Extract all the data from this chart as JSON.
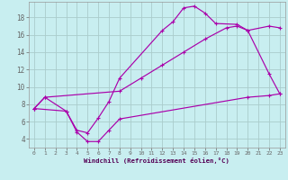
{
  "background_color": "#c8eef0",
  "grid_color": "#aacccc",
  "line_color": "#aa00aa",
  "xlabel": "Windchill (Refroidissement éolien,°C)",
  "xlim": [
    -0.5,
    23.5
  ],
  "ylim": [
    3.0,
    19.8
  ],
  "xticks": [
    0,
    1,
    2,
    3,
    4,
    5,
    6,
    7,
    8,
    9,
    10,
    11,
    12,
    13,
    14,
    15,
    16,
    17,
    18,
    19,
    20,
    21,
    22,
    23
  ],
  "yticks": [
    4,
    6,
    8,
    10,
    12,
    14,
    16,
    18
  ],
  "curve1_x": [
    0,
    1,
    3,
    4,
    5,
    6,
    7,
    8,
    12,
    13,
    14,
    15,
    16,
    17,
    19,
    20,
    22,
    23
  ],
  "curve1_y": [
    7.5,
    8.8,
    7.2,
    5.0,
    4.7,
    6.4,
    8.3,
    11.0,
    16.5,
    17.5,
    19.1,
    19.3,
    18.5,
    17.3,
    17.2,
    16.5,
    11.5,
    9.2
  ],
  "curve2_x": [
    0,
    3,
    4,
    5,
    6,
    7,
    8,
    20,
    22,
    23
  ],
  "curve2_y": [
    7.5,
    7.2,
    4.8,
    3.7,
    3.7,
    5.0,
    6.3,
    8.8,
    9.0,
    9.2
  ],
  "curve3_x": [
    0,
    1,
    8,
    10,
    12,
    14,
    16,
    18,
    19,
    20,
    22,
    23
  ],
  "curve3_y": [
    7.5,
    8.8,
    9.5,
    11.0,
    12.5,
    14.0,
    15.5,
    16.8,
    17.0,
    16.5,
    17.0,
    16.8
  ]
}
